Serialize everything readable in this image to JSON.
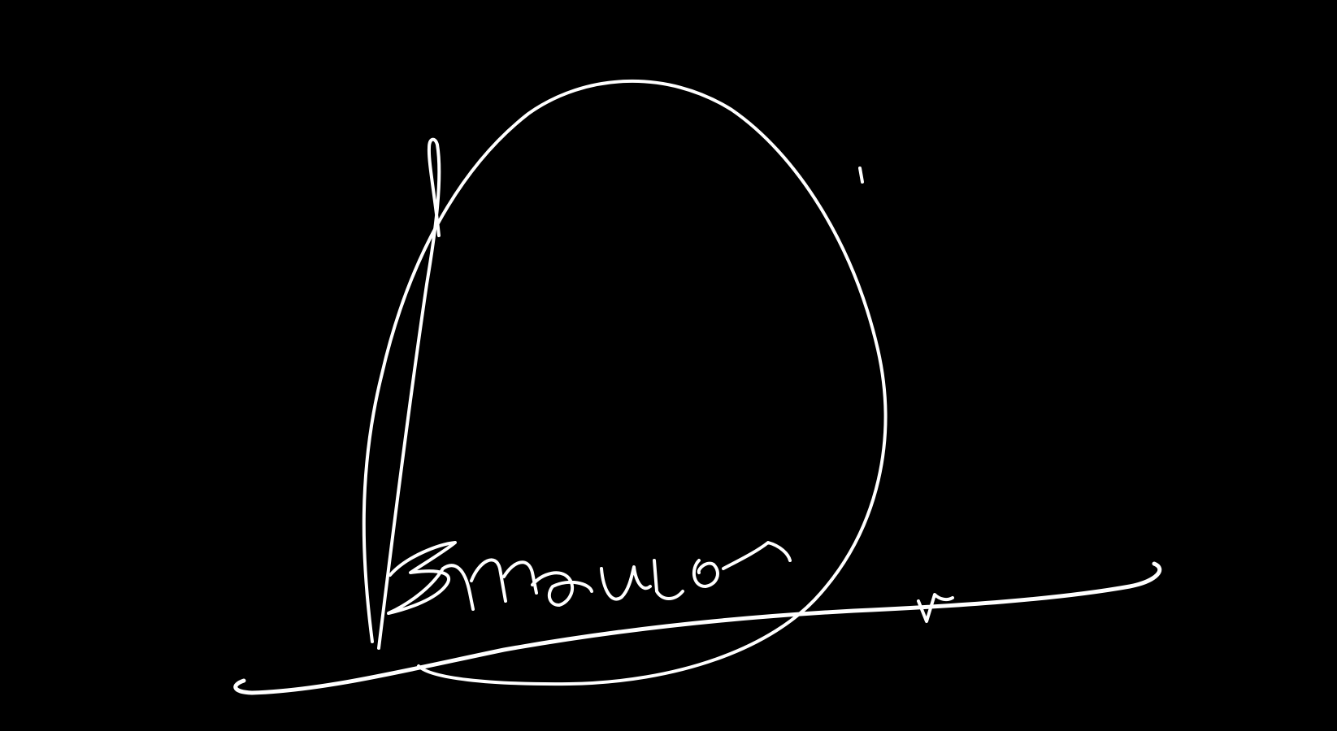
{
  "image": {
    "background_color": "#000000",
    "ink_color": "#ffffff",
    "content": "handwritten-signature"
  }
}
